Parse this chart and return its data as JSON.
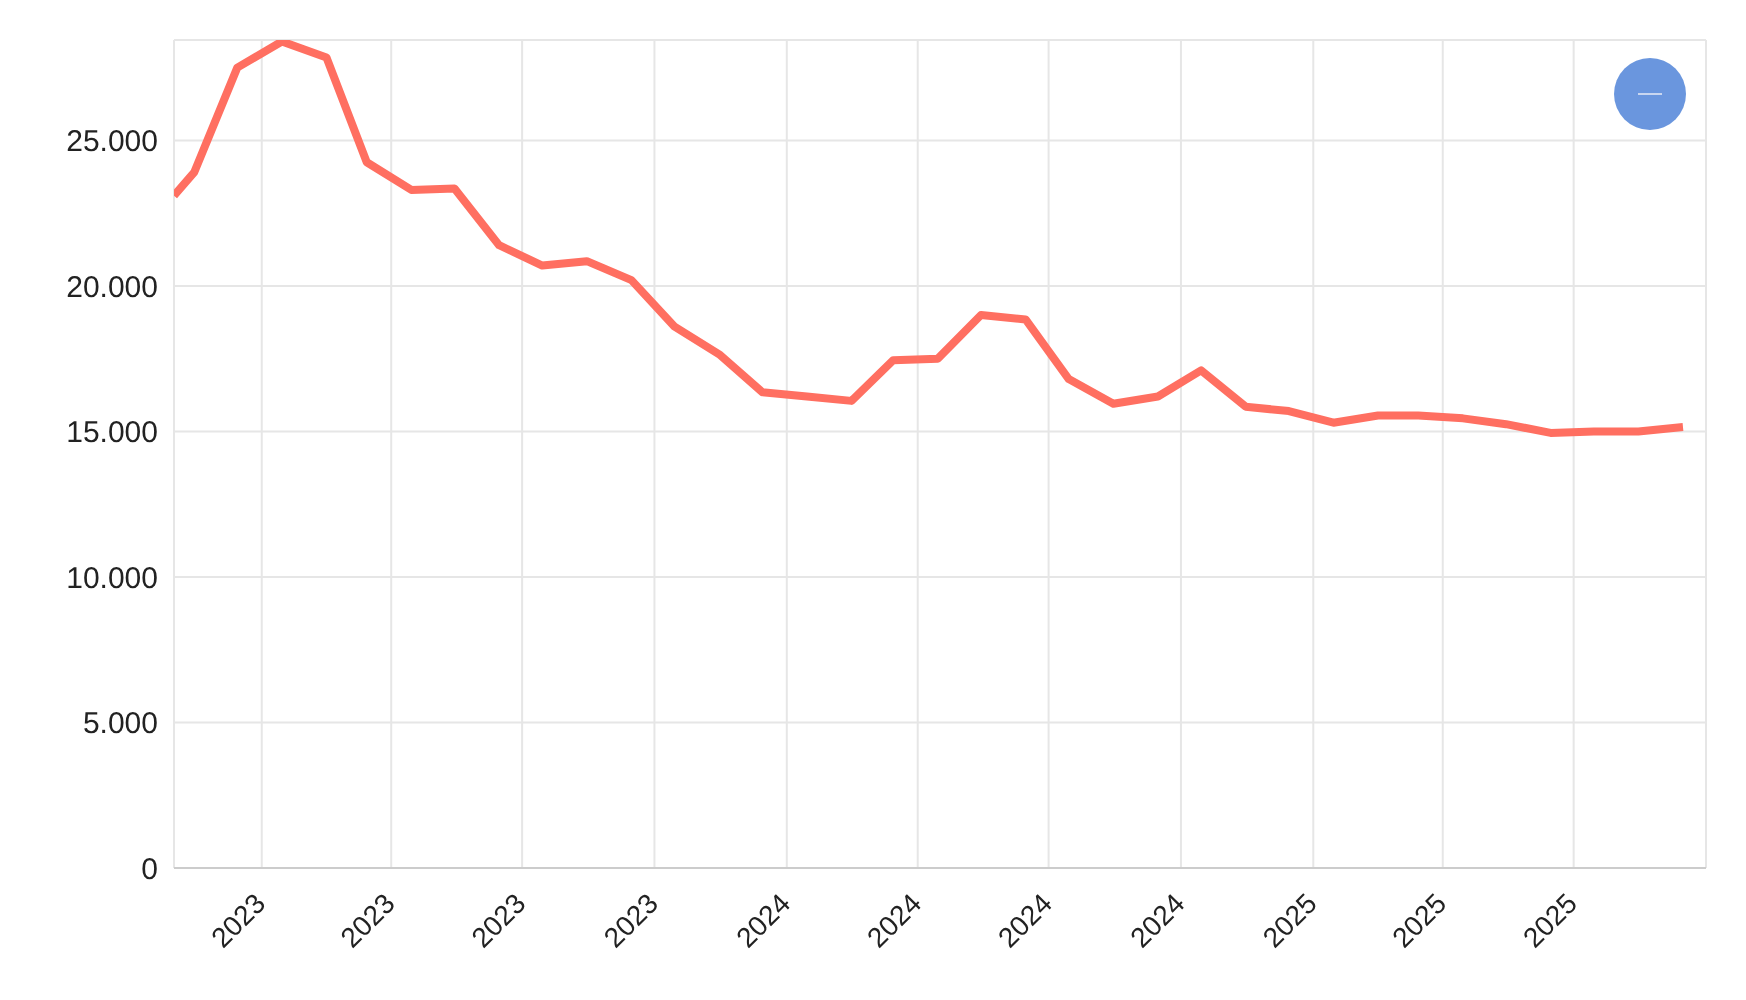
{
  "chart_data": {
    "type": "line",
    "x": [
      "2022-11-01",
      "2022-11-15",
      "2022-12-15",
      "2023-01-15",
      "2023-02-15",
      "2023-03-15",
      "2023-04-15",
      "2023-05-15",
      "2023-06-15",
      "2023-07-15",
      "2023-08-15",
      "2023-09-15",
      "2023-10-15",
      "2023-11-15",
      "2023-12-15",
      "2024-01-15",
      "2024-02-15",
      "2024-03-15",
      "2024-04-15",
      "2024-05-15",
      "2024-06-15",
      "2024-07-15",
      "2024-08-15",
      "2024-09-15",
      "2024-10-15",
      "2024-11-15",
      "2024-12-15",
      "2025-01-15",
      "2025-02-15",
      "2025-03-15",
      "2025-04-15",
      "2025-05-15",
      "2025-06-15",
      "2025-07-15",
      "2025-08-15",
      "2025-09-15"
    ],
    "series": [
      {
        "color": "#ff6f61",
        "values": [
          23100,
          23900,
          27500,
          28400,
          27850,
          24250,
          23300,
          23350,
          21400,
          20700,
          20850,
          20200,
          18600,
          17650,
          16350,
          16200,
          16050,
          17450,
          17500,
          19000,
          18850,
          16800,
          15950,
          16200,
          17100,
          15850,
          15700,
          15300,
          15550,
          15550,
          15450,
          15250,
          14950,
          15000,
          15000,
          15150
        ]
      }
    ],
    "xlim": [
      "2022-11-01",
      "2025-10-01"
    ],
    "xticks": [
      {
        "value": "2023-01-01",
        "label": "2023"
      },
      {
        "value": "2023-04-01",
        "label": "2023"
      },
      {
        "value": "2023-07-01",
        "label": "2023"
      },
      {
        "value": "2023-10-01",
        "label": "2023"
      },
      {
        "value": "2024-01-01",
        "label": "2024"
      },
      {
        "value": "2024-04-01",
        "label": "2024"
      },
      {
        "value": "2024-07-01",
        "label": "2024"
      },
      {
        "value": "2024-10-01",
        "label": "2024"
      },
      {
        "value": "2025-01-01",
        "label": "2025"
      },
      {
        "value": "2025-04-01",
        "label": "2025"
      },
      {
        "value": "2025-07-01",
        "label": "2025"
      }
    ],
    "ylim": [
      0,
      28450
    ],
    "yticks": [
      0,
      {
        "value": 5000,
        "label": "5.000"
      },
      {
        "value": 10000,
        "label": "10.000"
      },
      {
        "value": 15000,
        "label": "15.000"
      },
      {
        "value": 20000,
        "label": "20.000"
      },
      {
        "value": 25000,
        "label": "25.000"
      }
    ],
    "grid": true
  }
}
